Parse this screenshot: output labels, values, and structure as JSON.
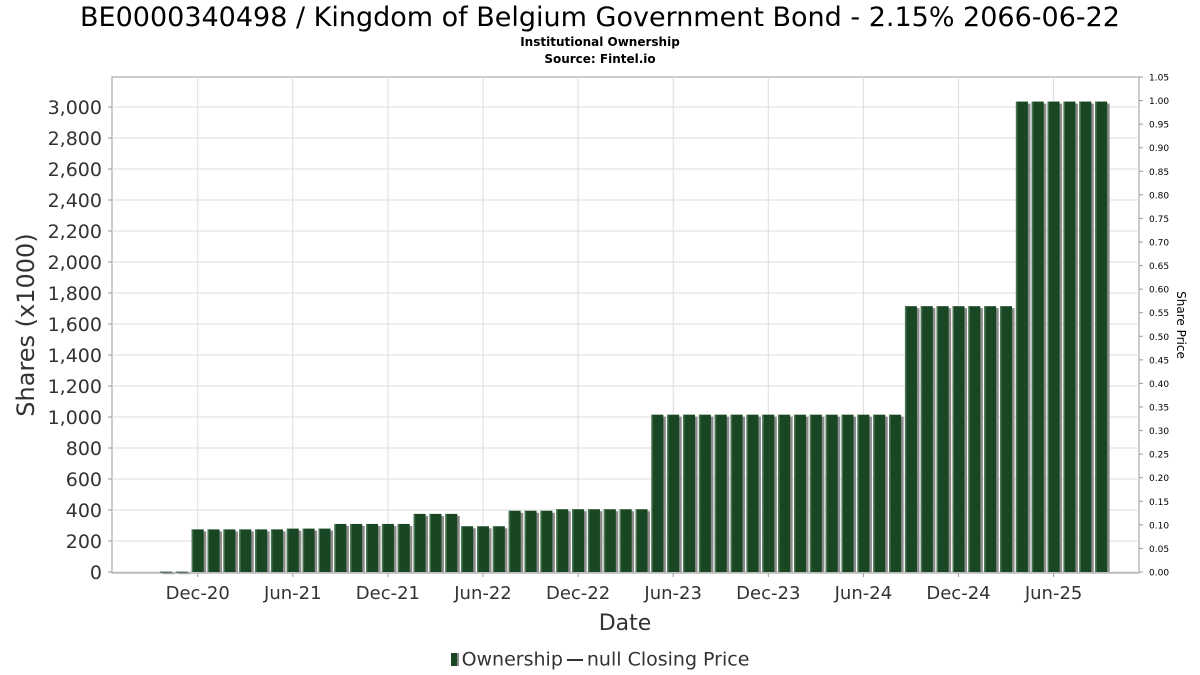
{
  "chart_data": {
    "type": "bar",
    "title": "BE0000340498 / Kingdom of Belgium Government Bond - 2.15% 2066-06-22",
    "subtitle": "Institutional Ownership",
    "source": "Source: Fintel.io",
    "xlabel": "Date",
    "ylabel": "Shares (x1000)",
    "y2label": "Share Price",
    "ylim": [
      0,
      3100
    ],
    "y2lim": [
      0,
      1.05
    ],
    "yticks": [
      "0",
      "200",
      "400",
      "600",
      "800",
      "1,000",
      "1,200",
      "1,400",
      "1,600",
      "1,800",
      "2,000",
      "2,200",
      "2,400",
      "2,600",
      "2,800",
      "3,000"
    ],
    "y2ticks": [
      "0.00",
      "0.05",
      "0.10",
      "0.15",
      "0.20",
      "0.25",
      "0.30",
      "0.35",
      "0.40",
      "0.45",
      "0.50",
      "0.55",
      "0.60",
      "0.65",
      "0.70",
      "0.75",
      "0.80",
      "0.85",
      "0.90",
      "0.95",
      "1.00",
      "1.05"
    ],
    "xticks": [
      "Dec-20",
      "Jun-21",
      "Dec-21",
      "Jun-22",
      "Dec-22",
      "Jun-23",
      "Dec-23",
      "Jun-24",
      "Dec-24",
      "Jun-25"
    ],
    "xtick_index": [
      2,
      8,
      14,
      20,
      26,
      32,
      38,
      44,
      50,
      56
    ],
    "grid": true,
    "legend_position": "bottom-center",
    "series": [
      {
        "name": "Ownership",
        "color": "#1a4723",
        "values": [
          2,
          2,
          275,
          275,
          275,
          275,
          275,
          275,
          280,
          280,
          280,
          310,
          310,
          310,
          310,
          310,
          375,
          375,
          375,
          295,
          295,
          295,
          395,
          395,
          395,
          405,
          405,
          405,
          405,
          405,
          405,
          1015,
          1015,
          1015,
          1015,
          1015,
          1015,
          1015,
          1015,
          1015,
          1015,
          1015,
          1015,
          1015,
          1015,
          1015,
          1015,
          1715,
          1715,
          1715,
          1715,
          1715,
          1715,
          1715,
          3035,
          3035,
          3035,
          3035,
          3035,
          3035
        ]
      },
      {
        "name": "null Closing Price",
        "color": "#333333",
        "values": []
      }
    ]
  }
}
